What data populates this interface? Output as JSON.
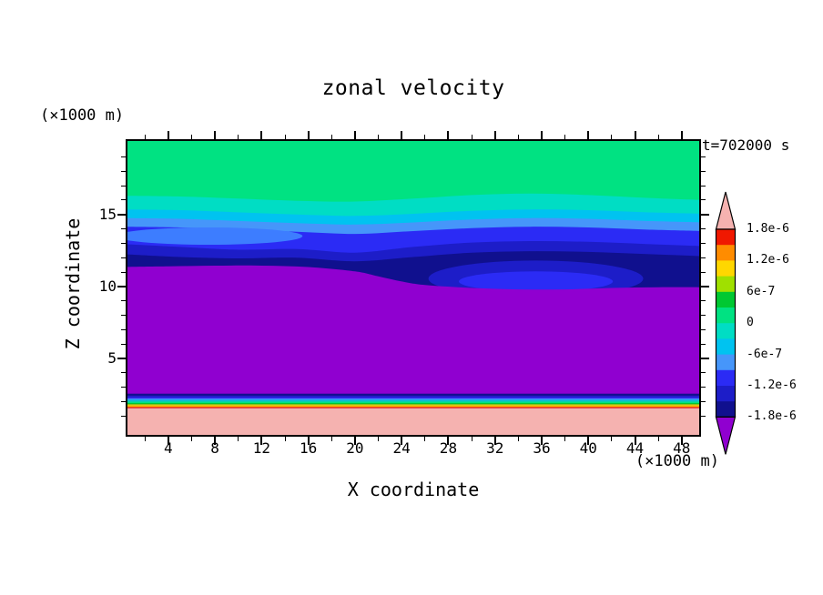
{
  "title": "zonal velocity",
  "timestamp": "t=702000 s",
  "axes": {
    "x_label": "X coordinate",
    "x_unit": "(×1000 m)",
    "y_label": "Z coordinate",
    "y_unit": "(×1000 m)",
    "x_ticks": [
      4,
      8,
      12,
      16,
      20,
      24,
      28,
      32,
      36,
      40,
      44,
      48
    ],
    "y_ticks": [
      5,
      10,
      15
    ]
  },
  "colorbar": {
    "labels": [
      "1.8e-6",
      "1.2e-6",
      "6e-7",
      "0",
      "-6e-7",
      "-1.2e-6",
      "-1.8e-6"
    ],
    "band_colors": [
      "#f01800",
      "#ff8c00",
      "#ffd700",
      "#a0e000",
      "#00c832",
      "#00e282",
      "#00ddc4",
      "#00c3f0",
      "#4696fa",
      "#2b2bf5",
      "#1d1dc8",
      "#10108e"
    ],
    "arrow_top_color": "#f5b2b0",
    "arrow_bottom_color": "#9000d0"
  },
  "chart_data": {
    "type": "heatmap",
    "subtype": "filled-contour",
    "title": "zonal velocity",
    "xlabel": "X coordinate (×1000 m)",
    "ylabel": "Z coordinate (×1000 m)",
    "x_axis_range": [
      0.5,
      49.5
    ],
    "z_axis_range": [
      -0.3,
      20.1
    ],
    "contour_interval": 3e-07,
    "levels": [
      -1.8e-06,
      -1.5e-06,
      -1.2e-06,
      -9e-07,
      -6e-07,
      -3e-07,
      0,
      3e-07,
      6e-07,
      9e-07,
      1.2e-06,
      1.5e-06,
      1.8e-06
    ],
    "regions": [
      {
        "name": "band-0-to-3e-7",
        "color": "#00e282",
        "rect": [
          21,
          -1
        ]
      },
      {
        "name": "band--3e-7-to-0",
        "color": "#00ddc4",
        "boundary": [
          [
            0,
            16.3
          ],
          [
            5,
            16.25
          ],
          [
            10,
            16.1
          ],
          [
            15,
            15.95
          ],
          [
            20,
            15.9
          ],
          [
            25,
            16.1
          ],
          [
            30,
            16.35
          ],
          [
            35,
            16.45
          ],
          [
            40,
            16.35
          ],
          [
            45,
            16.15
          ],
          [
            50,
            16.0
          ]
        ]
      },
      {
        "name": "band--6e-7-to--3e-7",
        "color": "#00c3f0",
        "boundary": [
          [
            0,
            15.35
          ],
          [
            5,
            15.3
          ],
          [
            10,
            15.15
          ],
          [
            15,
            15.0
          ],
          [
            20,
            14.9
          ],
          [
            25,
            15.05
          ],
          [
            30,
            15.25
          ],
          [
            35,
            15.35
          ],
          [
            40,
            15.3
          ],
          [
            45,
            15.15
          ],
          [
            50,
            15.05
          ]
        ]
      },
      {
        "name": "band--9e-7-to--6e-7",
        "color": "#4696fa",
        "boundary": [
          [
            0,
            14.75
          ],
          [
            5,
            14.7
          ],
          [
            10,
            14.55
          ],
          [
            15,
            14.4
          ],
          [
            20,
            14.3
          ],
          [
            25,
            14.45
          ],
          [
            30,
            14.65
          ],
          [
            35,
            14.75
          ],
          [
            40,
            14.7
          ],
          [
            45,
            14.55
          ],
          [
            50,
            14.45
          ]
        ]
      },
      {
        "name": "band--1.2e-6-to--9e-7",
        "color": "#2b2bf5",
        "boundary": [
          [
            0,
            14.15
          ],
          [
            5,
            14.1
          ],
          [
            10,
            13.95
          ],
          [
            15,
            13.8
          ],
          [
            20,
            13.65
          ],
          [
            25,
            13.85
          ],
          [
            30,
            14.05
          ],
          [
            35,
            14.15
          ],
          [
            40,
            14.1
          ],
          [
            45,
            13.95
          ],
          [
            50,
            13.85
          ]
        ]
      },
      {
        "name": "left-lens",
        "color": "#3d7dff",
        "ellipse": [
          7.5,
          13.5,
          8.0,
          0.6
        ]
      },
      {
        "name": "band--1.5e-6-to--1.2e-6",
        "color": "#1d1dc8",
        "boundary": [
          [
            0,
            12.95
          ],
          [
            5,
            12.75
          ],
          [
            10,
            12.55
          ],
          [
            15,
            12.6
          ],
          [
            20,
            12.35
          ],
          [
            25,
            12.75
          ],
          [
            30,
            13.05
          ],
          [
            35,
            13.15
          ],
          [
            40,
            13.1
          ],
          [
            45,
            12.95
          ],
          [
            50,
            12.8
          ]
        ]
      },
      {
        "name": "band--1.8e-6-to--1.5e-6",
        "color": "#10108e",
        "boundary": [
          [
            0,
            12.25
          ],
          [
            5,
            12.05
          ],
          [
            10,
            11.95
          ],
          [
            15,
            12.0
          ],
          [
            20,
            11.75
          ],
          [
            25,
            12.05
          ],
          [
            30,
            12.35
          ],
          [
            35,
            12.45
          ],
          [
            40,
            12.4
          ],
          [
            45,
            12.25
          ],
          [
            50,
            12.1
          ]
        ]
      },
      {
        "name": "right-cell-ring",
        "color": "#1d1dc8",
        "ellipse": [
          35.5,
          10.55,
          9.2,
          1.25
        ]
      },
      {
        "name": "right-cell-core",
        "color": "#2b2bf5",
        "ellipse": [
          35.5,
          10.35,
          6.6,
          0.7
        ]
      },
      {
        "name": "band-below--1.8e-6",
        "color": "#9000d0",
        "boundary": [
          [
            0,
            11.35
          ],
          [
            4,
            11.4
          ],
          [
            8,
            11.45
          ],
          [
            12,
            11.45
          ],
          [
            16,
            11.35
          ],
          [
            20,
            11.05
          ],
          [
            22,
            10.7
          ],
          [
            24,
            10.35
          ],
          [
            26,
            10.1
          ],
          [
            30,
            9.9
          ],
          [
            34,
            9.8
          ],
          [
            38,
            9.8
          ],
          [
            42,
            9.9
          ],
          [
            46,
            9.95
          ],
          [
            50,
            9.95
          ]
        ]
      },
      {
        "name": "surface-darknavy",
        "color": "#10108e",
        "rect": [
          2.56,
          2.42
        ]
      },
      {
        "name": "surface-navy",
        "color": "#1d1dc8",
        "rect": [
          2.42,
          2.3
        ]
      },
      {
        "name": "surface-blue",
        "color": "#2b2bf5",
        "rect": [
          2.3,
          2.22
        ]
      },
      {
        "name": "surface-ltblue",
        "color": "#4696fa",
        "rect": [
          2.22,
          2.15
        ]
      },
      {
        "name": "surface-cyan",
        "color": "#00c3f0",
        "rect": [
          2.15,
          2.08
        ]
      },
      {
        "name": "surface-turquoise",
        "color": "#00ddc4",
        "rect": [
          2.08,
          2.0
        ]
      },
      {
        "name": "surface-springgreen",
        "color": "#00e282",
        "rect": [
          2.0,
          1.91
        ]
      },
      {
        "name": "surface-green",
        "color": "#00c832",
        "rect": [
          1.91,
          1.83
        ]
      },
      {
        "name": "surface-yellowgreen",
        "color": "#a0e000",
        "rect": [
          1.83,
          1.76
        ]
      },
      {
        "name": "surface-yellow",
        "color": "#ffd700",
        "rect": [
          1.76,
          1.69
        ]
      },
      {
        "name": "surface-orange",
        "color": "#ff8c00",
        "rect": [
          1.69,
          1.62
        ]
      },
      {
        "name": "surface-red",
        "color": "#f01800",
        "rect": [
          1.62,
          1.55
        ]
      },
      {
        "name": "band-above-1.8e-6",
        "color": "#f5b2b0",
        "rect": [
          1.55,
          -1
        ]
      }
    ]
  }
}
